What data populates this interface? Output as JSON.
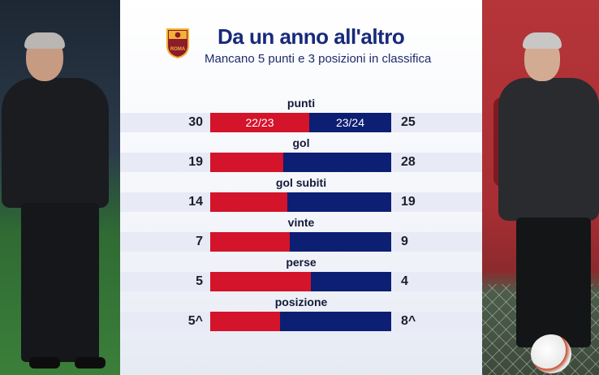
{
  "header": {
    "title": "Da un anno all'altro",
    "subtitle": "Mancano 5 punti e 3 posizioni in classifica",
    "logo_text": "ROMA"
  },
  "colors": {
    "season_a": "#d3142b",
    "season_b": "#0d1f73",
    "title": "#172a7a"
  },
  "chart_data": {
    "type": "bar",
    "series": [
      {
        "name": "22/23",
        "color": "#d3142b"
      },
      {
        "name": "23/24",
        "color": "#0d1f73"
      }
    ],
    "categories": [
      "punti",
      "gol",
      "gol subiti",
      "vinte",
      "perse",
      "posizione"
    ],
    "rows": [
      {
        "label": "punti",
        "left_display": "30",
        "right_display": "25",
        "left": 30,
        "right": 25
      },
      {
        "label": "gol",
        "left_display": "19",
        "right_display": "28",
        "left": 19,
        "right": 28
      },
      {
        "label": "gol subiti",
        "left_display": "14",
        "right_display": "19",
        "left": 14,
        "right": 19
      },
      {
        "label": "vinte",
        "left_display": "7",
        "right_display": "9",
        "left": 7,
        "right": 9
      },
      {
        "label": "perse",
        "left_display": "5",
        "right_display": "4",
        "left": 5,
        "right": 4
      },
      {
        "label": "posizione",
        "left_display": "5^",
        "right_display": "8^",
        "left": 5,
        "right": 8
      }
    ]
  }
}
